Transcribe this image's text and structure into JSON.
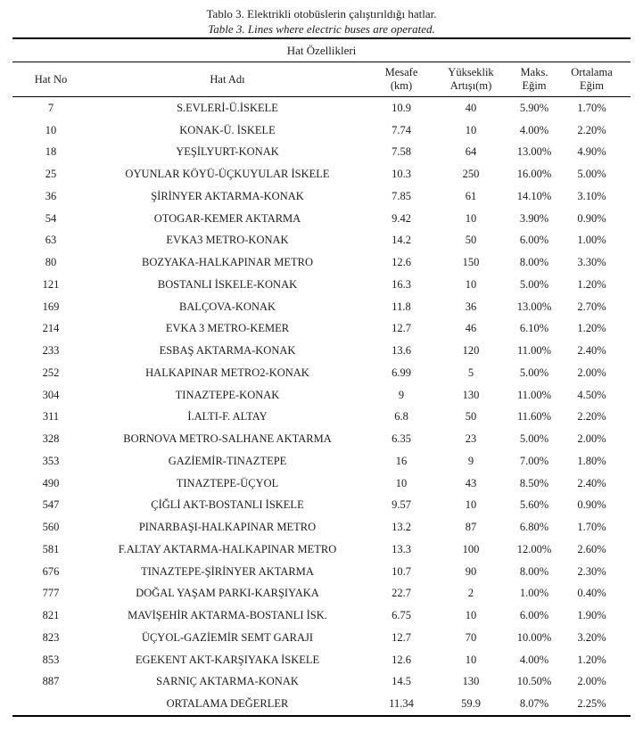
{
  "caption": {
    "title_tr": "Tablo 3. Elektrikli otobüslerin çalıştırıldığı hatlar.",
    "title_en": "Table 3. Lines where electric buses are operated."
  },
  "table": {
    "group_header": "Hat Özellikleri",
    "columns": [
      {
        "line1": "Hat No",
        "line2": ""
      },
      {
        "line1": "Hat Adı",
        "line2": ""
      },
      {
        "line1": "Mesafe",
        "line2": "(km)"
      },
      {
        "line1": "Yükseklik",
        "line2": "Artışı(m)"
      },
      {
        "line1": "Maks.",
        "line2": "Eğim"
      },
      {
        "line1": "Ortalama",
        "line2": "Eğim"
      }
    ],
    "rows": [
      [
        "7",
        "S.EVLERİ-Ü.İSKELE",
        "10.9",
        "40",
        "5.90%",
        "1.70%"
      ],
      [
        "10",
        "KONAK-Ü. İSKELE",
        "7.74",
        "10",
        "4.00%",
        "2.20%"
      ],
      [
        "18",
        "YEŞİLYURT-KONAK",
        "7.58",
        "64",
        "13.00%",
        "4.90%"
      ],
      [
        "25",
        "OYUNLAR KÖYÜ-ÜÇKUYULAR İSKELE",
        "10.3",
        "250",
        "16.00%",
        "5.00%"
      ],
      [
        "36",
        "ŞİRİNYER AKTARMA-KONAK",
        "7.85",
        "61",
        "14.10%",
        "3.10%"
      ],
      [
        "54",
        "OTOGAR-KEMER AKTARMA",
        "9.42",
        "10",
        "3.90%",
        "0.90%"
      ],
      [
        "63",
        "EVKA3 METRO-KONAK",
        "14.2",
        "50",
        "6.00%",
        "1.00%"
      ],
      [
        "80",
        "BOZYAKA-HALKAPINAR METRO",
        "12.6",
        "150",
        "8.00%",
        "3.30%"
      ],
      [
        "121",
        "BOSTANLI İSKELE-KONAK",
        "16.3",
        "10",
        "5.00%",
        "1.20%"
      ],
      [
        "169",
        "BALÇOVA-KONAK",
        "11.8",
        "36",
        "13.00%",
        "2.70%"
      ],
      [
        "214",
        "EVKA 3 METRO-KEMER",
        "12.7",
        "46",
        "6.10%",
        "1.20%"
      ],
      [
        "233",
        "ESBAŞ AKTARMA-KONAK",
        "13.6",
        "120",
        "11.00%",
        "2.40%"
      ],
      [
        "252",
        "HALKAPINAR METRO2-KONAK",
        "6.99",
        "5",
        "5.00%",
        "2.00%"
      ],
      [
        "304",
        "TINAZTEPE-KONAK",
        "9",
        "130",
        "11.00%",
        "4.50%"
      ],
      [
        "311",
        "İ.ALTI-F. ALTAY",
        "6.8",
        "50",
        "11.60%",
        "2.20%"
      ],
      [
        "328",
        "BORNOVA METRO-SALHANE AKTARMA",
        "6.35",
        "23",
        "5.00%",
        "2.00%"
      ],
      [
        "353",
        "GAZİEMİR-TINAZTEPE",
        "16",
        "9",
        "7.00%",
        "1.80%"
      ],
      [
        "490",
        "TINAZTEPE-ÜÇYOL",
        "10",
        "43",
        "8.50%",
        "2.40%"
      ],
      [
        "547",
        "ÇİĞLİ AKT-BOSTANLI İSKELE",
        "9.57",
        "10",
        "5.60%",
        "0.90%"
      ],
      [
        "560",
        "PINARBAŞI-HALKAPINAR METRO",
        "13.2",
        "87",
        "6.80%",
        "1.70%"
      ],
      [
        "581",
        "F.ALTAY AKTARMA-HALKAPINAR METRO",
        "13.3",
        "100",
        "12.00%",
        "2.60%"
      ],
      [
        "676",
        "TINAZTEPE-ŞİRİNYER AKTARMA",
        "10.7",
        "90",
        "8.00%",
        "2.30%"
      ],
      [
        "777",
        "DOĞAL YAŞAM PARKI-KARŞIYAKA",
        "22.7",
        "2",
        "1.00%",
        "0.40%"
      ],
      [
        "821",
        "MAVİŞEHİR AKTARMA-BOSTANLI İSK.",
        "6.75",
        "10",
        "6.00%",
        "1.90%"
      ],
      [
        "823",
        "ÜÇYOL-GAZİEMİR SEMT GARAJI",
        "12.7",
        "70",
        "10.00%",
        "3.20%"
      ],
      [
        "853",
        "EGEKENT AKT-KARŞIYAKA İSKELE",
        "12.6",
        "10",
        "4.00%",
        "1.20%"
      ],
      [
        "887",
        "SARNIÇ AKTARMA-KONAK",
        "14.5",
        "130",
        "10.50%",
        "2.00%"
      ]
    ],
    "footer": [
      "",
      "ORTALAMA DEĞERLER",
      "11.34",
      "59.9",
      "8.07%",
      "2.25%"
    ]
  },
  "colors": {
    "text": "#1c1c1c",
    "rule": "#000000",
    "background": "#ffffff"
  }
}
